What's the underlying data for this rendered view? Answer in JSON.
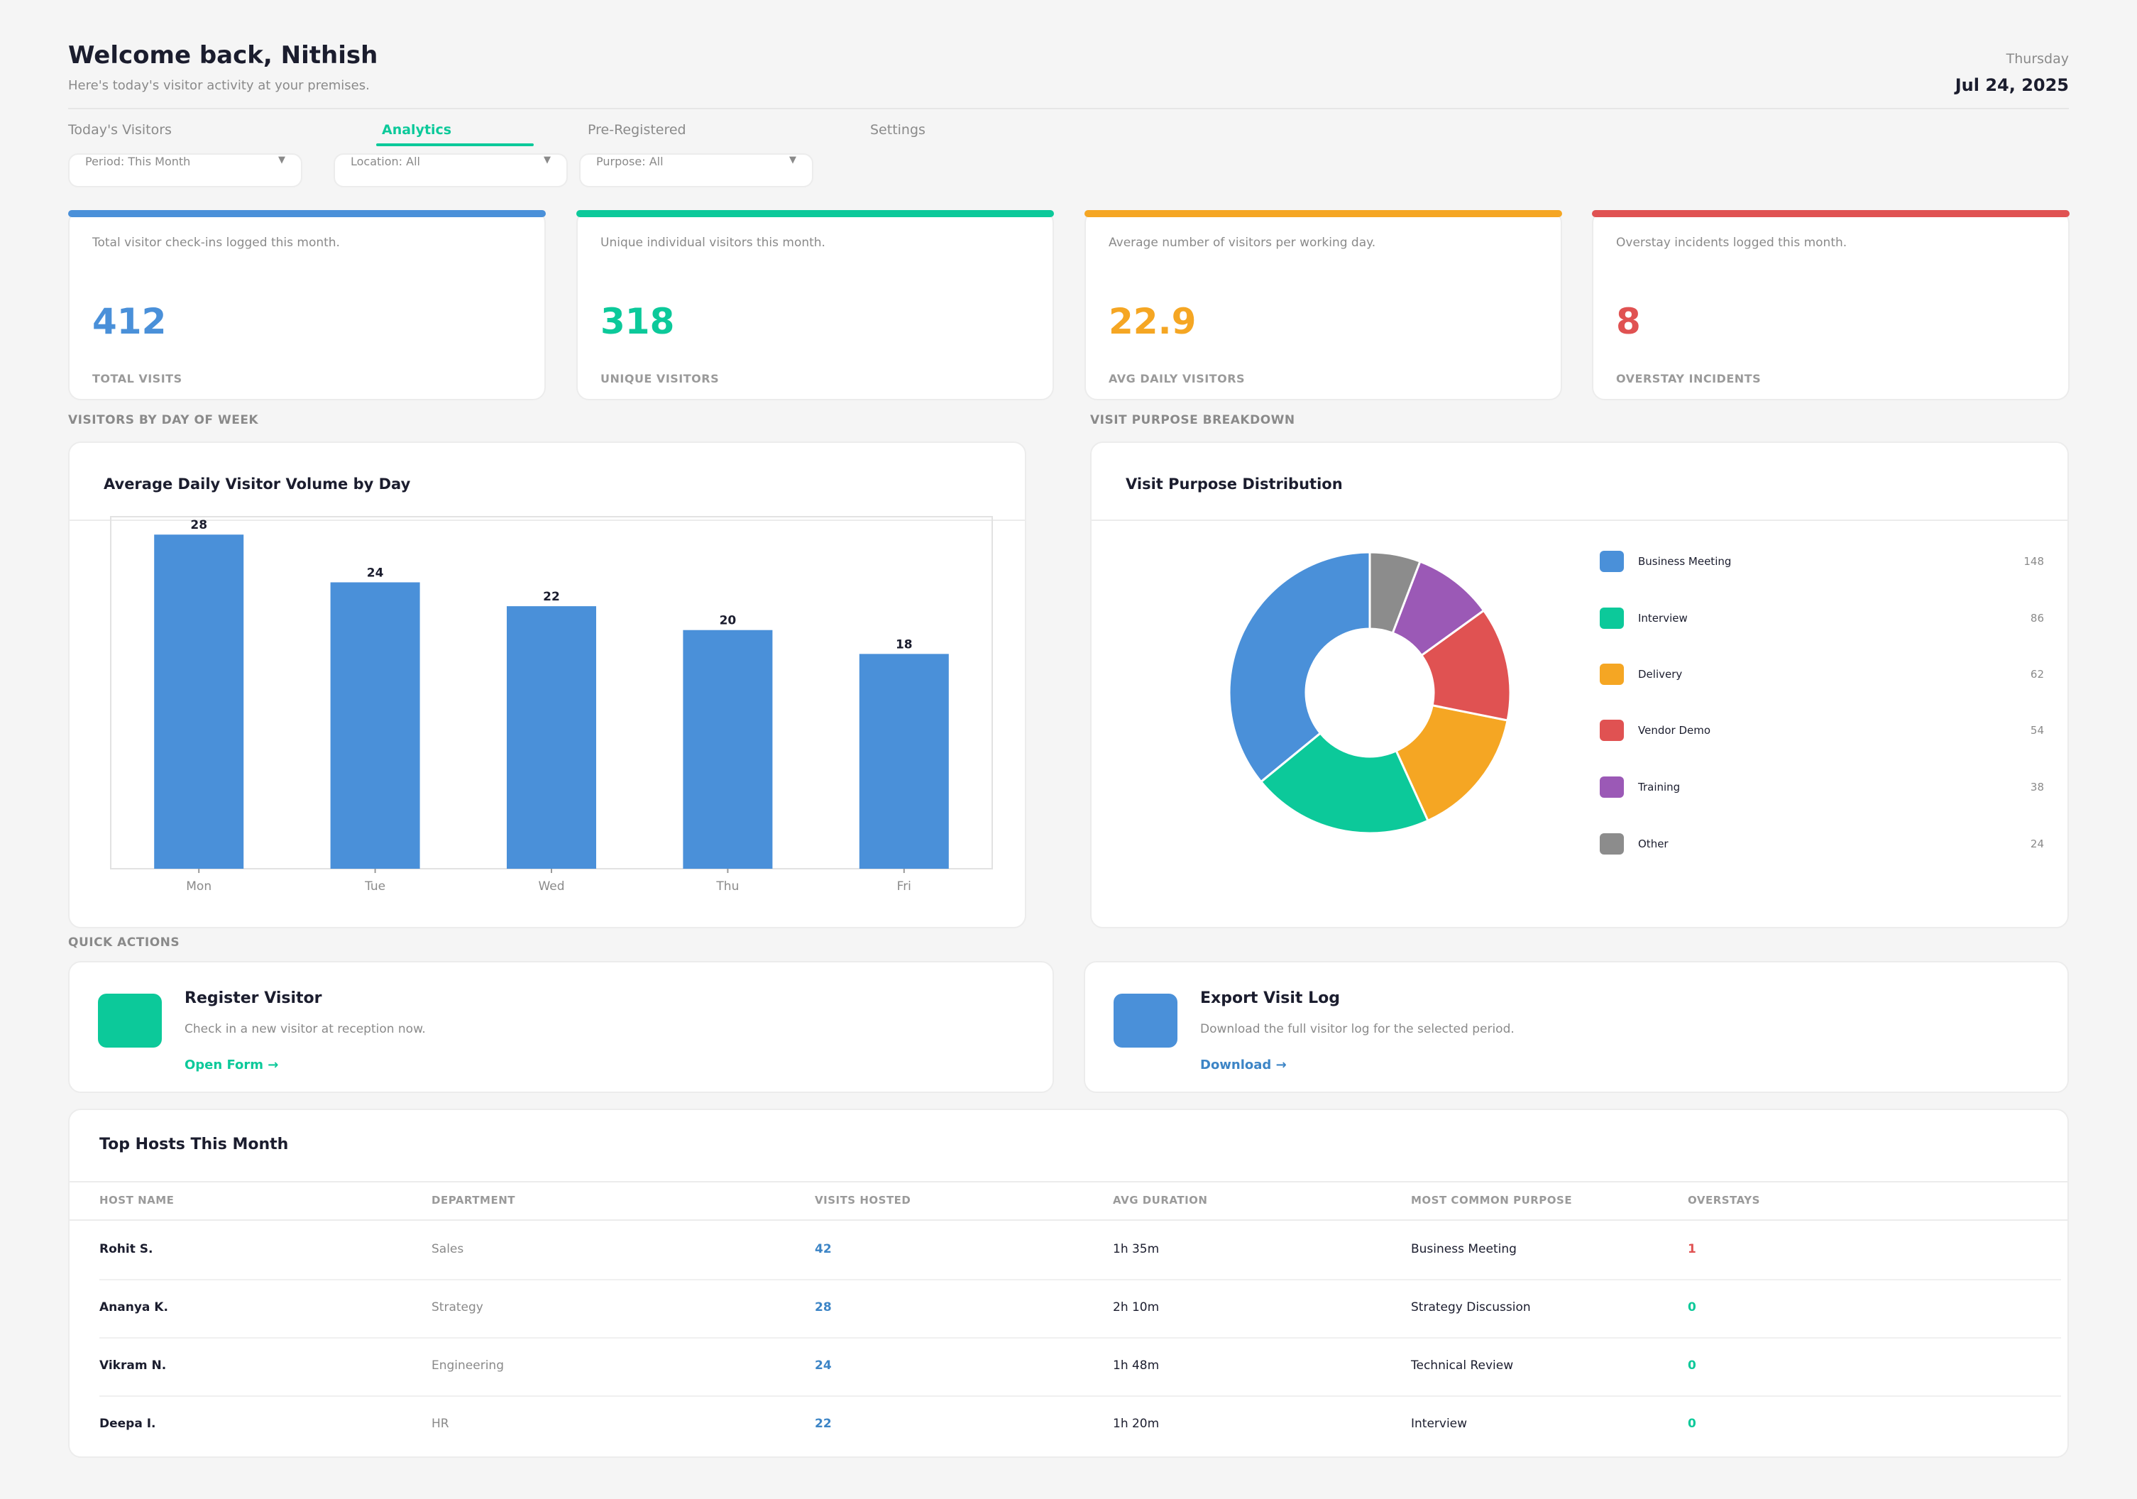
{
  "header": {
    "title": "Welcome back, Nithish",
    "subtitle": "Here's today's visitor activity at your premises.",
    "weekday": "Thursday",
    "date": "Jul 24, 2025"
  },
  "tabs": [
    {
      "label": "Today's Visitors",
      "active": false
    },
    {
      "label": "Analytics",
      "active": true
    },
    {
      "label": "Pre-Registered",
      "active": false
    },
    {
      "label": "Settings",
      "active": false
    }
  ],
  "filters": {
    "period": "Period: This Month",
    "location": "Location: All",
    "purpose": "Purpose: All"
  },
  "stats": [
    {
      "description": "Total visitor check-ins logged this month.",
      "value": "412",
      "label": "TOTAL VISITS",
      "color": "#4a90d9"
    },
    {
      "description": "Unique individual visitors this month.",
      "value": "318",
      "label": "UNIQUE VISITORS",
      "color": "#0cc99a"
    },
    {
      "description": "Average number of visitors per working day.",
      "value": "22.9",
      "label": "AVG DAILY VISITORS",
      "color": "#f5a623"
    },
    {
      "description": "Overstay incidents logged this month.",
      "value": "8",
      "label": "OVERSTAY INCIDENTS",
      "color": "#e05252"
    }
  ],
  "sections": {
    "by_day": "VISITORS BY DAY OF WEEK",
    "purpose": "VISIT PURPOSE BREAKDOWN",
    "quick_actions": "QUICK ACTIONS"
  },
  "chart_data": [
    {
      "type": "bar",
      "title": "Average Daily Visitor Volume by Day",
      "categories": [
        "Mon",
        "Tue",
        "Wed",
        "Thu",
        "Fri"
      ],
      "values": [
        28,
        24,
        22,
        20,
        18
      ],
      "data_labels": [
        "28",
        "24",
        "22",
        "20",
        "18"
      ],
      "ylim": [
        0,
        29.5
      ],
      "color": "#4a90d9",
      "grid": false
    },
    {
      "type": "pie",
      "title": "Visit Purpose Distribution",
      "donut": true,
      "slices": [
        {
          "label": "Business Meeting",
          "value": 148,
          "display": "148",
          "color": "#4a90d9"
        },
        {
          "label": "Interview",
          "value": 86,
          "display": "86",
          "color": "#0cc99a"
        },
        {
          "label": "Delivery",
          "value": 62,
          "display": "62",
          "color": "#f5a623"
        },
        {
          "label": "Vendor Demo",
          "value": 54,
          "display": "54",
          "color": "#e05252"
        },
        {
          "label": "Training",
          "value": 38,
          "display": "38",
          "color": "#9b59b6"
        },
        {
          "label": "Other",
          "value": 24,
          "display": "24",
          "color": "#8c8c8c"
        }
      ],
      "legend_position": "right"
    }
  ],
  "quick_actions": [
    {
      "title": "Register Visitor",
      "description": "Check in a new visitor at reception now.",
      "link": "Open Form →",
      "color": "#0cc99a",
      "icon": "register-visitor-icon"
    },
    {
      "title": "Export Visit Log",
      "description": "Download the full visitor log for the selected period.",
      "link": "Download →",
      "color": "#4a90d9",
      "icon": "export-log-icon"
    }
  ],
  "hosts_table": {
    "title": "Top Hosts This Month",
    "columns": [
      "HOST NAME",
      "DEPARTMENT",
      "VISITS HOSTED",
      "AVG DURATION",
      "MOST COMMON PURPOSE",
      "OVERSTAYS"
    ],
    "rows": [
      {
        "name": "Rohit S.",
        "department": "Sales",
        "visits": "42",
        "duration": "1h 35m",
        "purpose": "Business Meeting",
        "overstays": "1",
        "overstay_color": "#e05252"
      },
      {
        "name": "Ananya K.",
        "department": "Strategy",
        "visits": "28",
        "duration": "2h 10m",
        "purpose": "Strategy Discussion",
        "overstays": "0",
        "overstay_color": "#0cc99a"
      },
      {
        "name": "Vikram N.",
        "department": "Engineering",
        "visits": "24",
        "duration": "1h 48m",
        "purpose": "Technical Review",
        "overstays": "0",
        "overstay_color": "#0cc99a"
      },
      {
        "name": "Deepa I.",
        "department": "HR",
        "visits": "22",
        "duration": "1h 20m",
        "purpose": "Interview",
        "overstays": "0",
        "overstay_color": "#0cc99a"
      }
    ]
  },
  "colors": {
    "accent": "#0cc99a",
    "primary": "#4a90d9",
    "background": "#f5f5f5"
  }
}
